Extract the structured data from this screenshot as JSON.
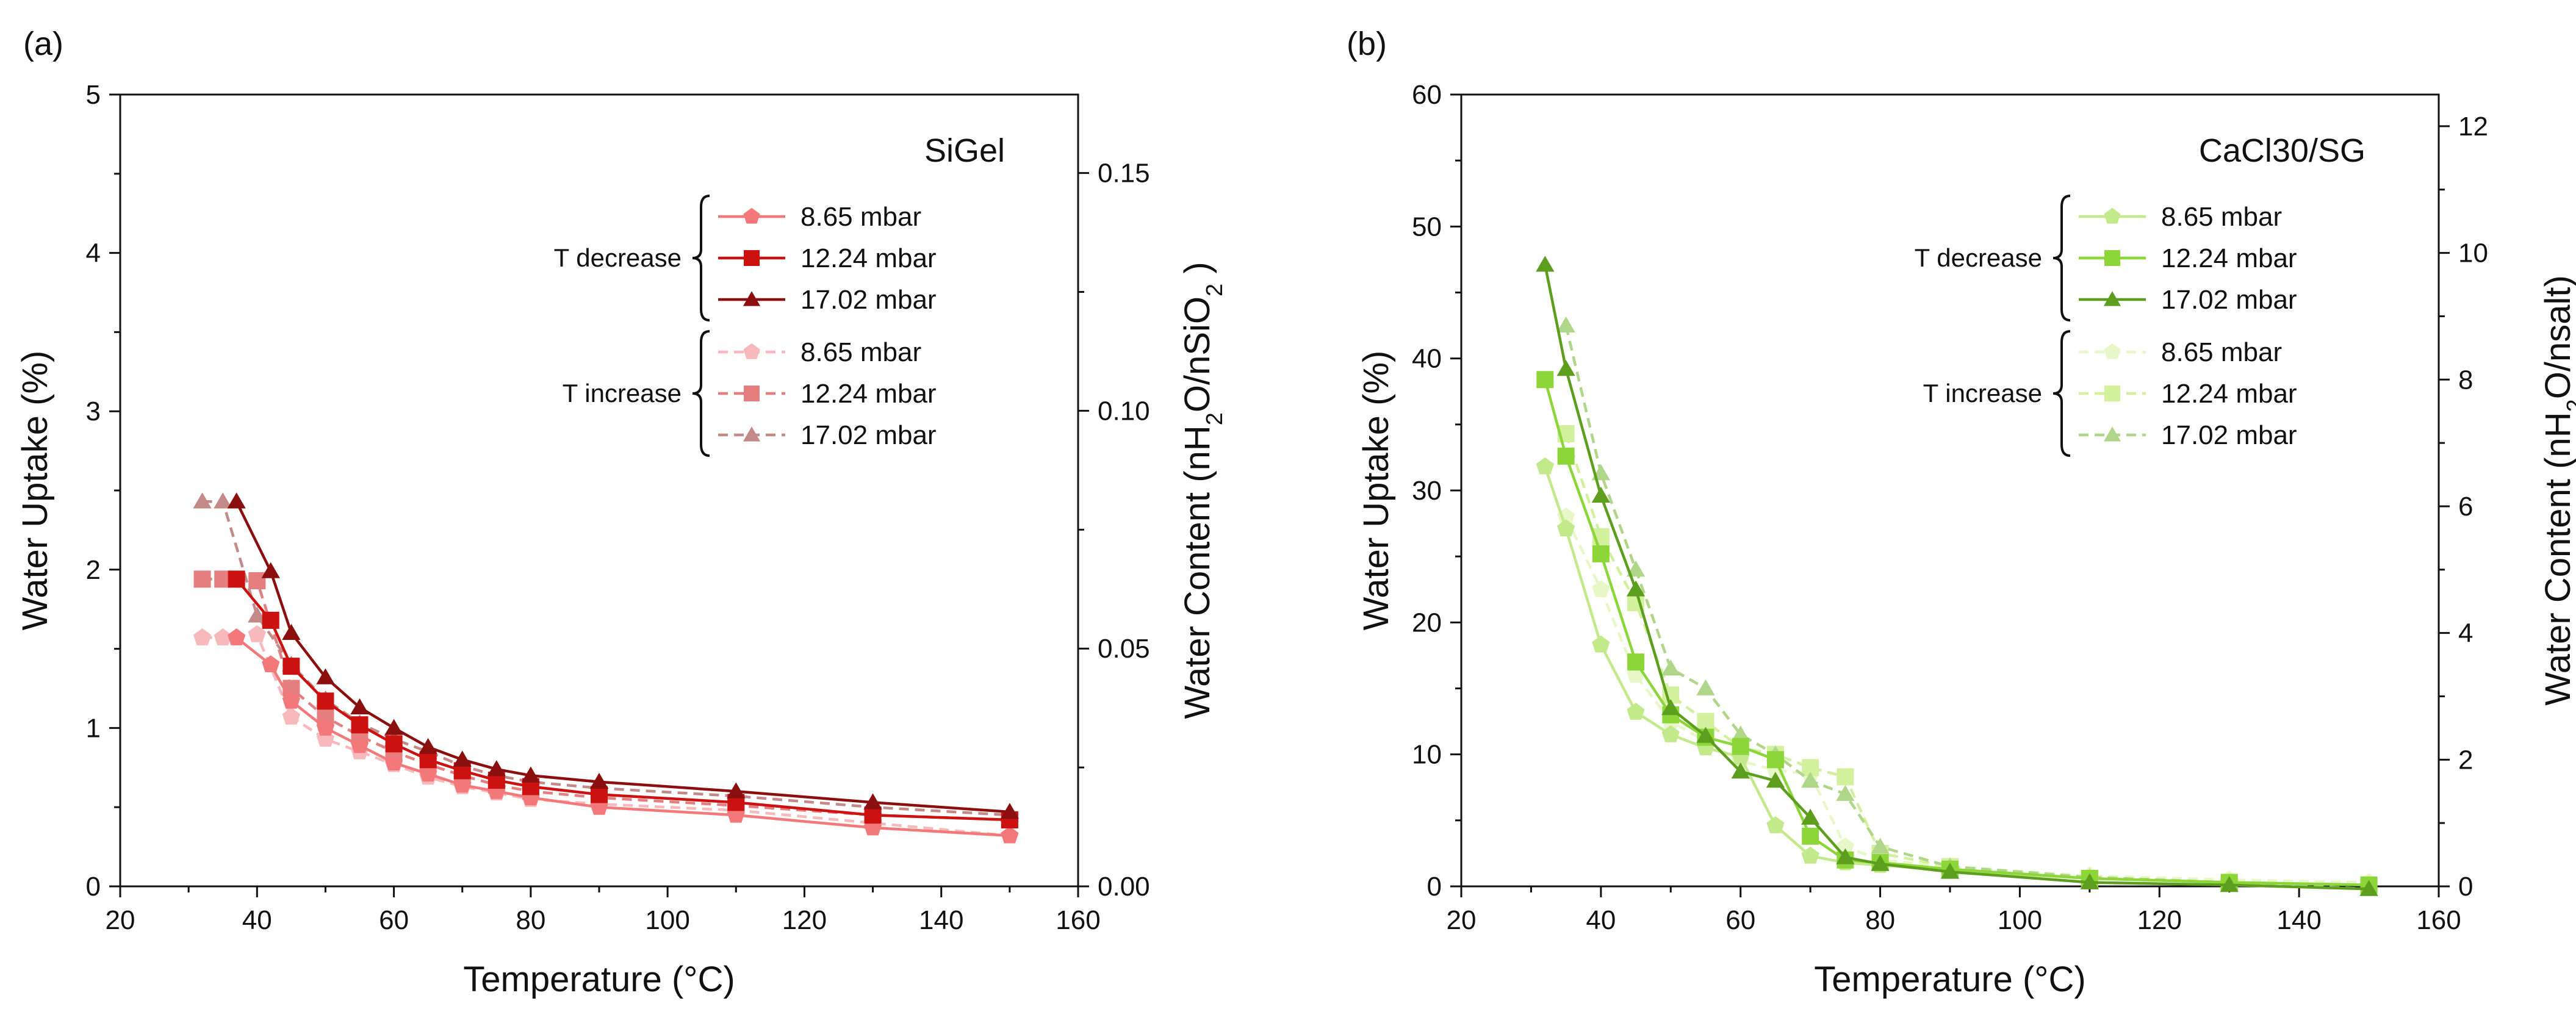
{
  "chart_data": [
    {
      "type": "line",
      "panel_label": "(a)",
      "title": "SiGel",
      "xlabel": "Temperature (°C)",
      "ylabel": "Water Uptake (%)",
      "ylabel_right": "Water Content  (nH2O/nSiO2 )",
      "xlim": [
        20,
        160
      ],
      "ylim": [
        0,
        5
      ],
      "ylim_right": [
        0,
        0.1665
      ],
      "xticks": [
        20,
        40,
        60,
        80,
        100,
        120,
        140,
        160
      ],
      "yticks": [
        0,
        1,
        2,
        3,
        4,
        5
      ],
      "yticks_right": [
        "0.00",
        "0.05",
        "0.10",
        "0.15"
      ],
      "group_labels": {
        "decrease": "T decrease",
        "increase": "T increase"
      },
      "series": [
        {
          "name": "8.65 mbar",
          "group": "decrease",
          "marker": "pentagon",
          "color": "#f2787a",
          "dashed": false,
          "x": [
            37,
            42,
            45,
            50,
            55,
            60,
            65,
            70,
            75,
            80,
            90,
            110,
            130,
            150
          ],
          "y": [
            1.57,
            1.4,
            1.17,
            1.0,
            0.89,
            0.78,
            0.71,
            0.64,
            0.6,
            0.56,
            0.5,
            0.45,
            0.37,
            0.32
          ]
        },
        {
          "name": "12.24 mbar",
          "group": "decrease",
          "marker": "square",
          "color": "#cc1111",
          "dashed": false,
          "x": [
            37,
            42,
            45,
            50,
            55,
            60,
            65,
            70,
            75,
            80,
            90,
            110,
            130,
            150
          ],
          "y": [
            1.94,
            1.68,
            1.39,
            1.17,
            1.02,
            0.9,
            0.8,
            0.73,
            0.67,
            0.63,
            0.58,
            0.53,
            0.45,
            0.42
          ]
        },
        {
          "name": "17.02 mbar",
          "group": "decrease",
          "marker": "triangle",
          "color": "#8b0f0f",
          "dashed": false,
          "x": [
            37,
            42,
            45,
            50,
            55,
            60,
            65,
            70,
            75,
            80,
            90,
            110,
            130,
            150
          ],
          "y": [
            2.43,
            1.99,
            1.6,
            1.32,
            1.13,
            1.0,
            0.88,
            0.8,
            0.74,
            0.7,
            0.66,
            0.6,
            0.53,
            0.47
          ]
        },
        {
          "name": "8.65 mbar",
          "group": "increase",
          "marker": "pentagon",
          "color": "#f7b9bb",
          "dashed": true,
          "x": [
            32,
            35,
            40,
            45,
            50,
            55,
            60,
            65,
            70,
            75,
            80,
            90,
            110,
            130,
            150
          ],
          "y": [
            1.57,
            1.57,
            1.59,
            1.07,
            0.93,
            0.85,
            0.77,
            0.69,
            0.63,
            0.59,
            0.55,
            0.52,
            0.48,
            0.4,
            0.32
          ]
        },
        {
          "name": "12.24 mbar",
          "group": "increase",
          "marker": "square",
          "color": "#e57e7e",
          "dashed": true,
          "x": [
            32,
            35,
            40,
            45,
            50,
            55,
            60,
            65,
            70,
            75,
            80,
            90,
            110,
            130,
            150
          ],
          "y": [
            1.94,
            1.94,
            1.93,
            1.25,
            1.07,
            0.95,
            0.85,
            0.77,
            0.7,
            0.64,
            0.6,
            0.56,
            0.51,
            0.45,
            0.42
          ]
        },
        {
          "name": "17.02 mbar",
          "group": "increase",
          "marker": "triangle",
          "color": "#c48a8a",
          "dashed": true,
          "x": [
            32,
            35,
            40,
            45,
            50,
            55,
            60,
            65,
            70,
            75,
            80,
            90,
            110,
            130,
            150
          ],
          "y": [
            2.43,
            2.43,
            1.71,
            1.4,
            1.18,
            1.03,
            0.93,
            0.85,
            0.76,
            0.7,
            0.66,
            0.62,
            0.57,
            0.5,
            0.45
          ]
        }
      ]
    },
    {
      "type": "line",
      "panel_label": "(b)",
      "title": "CaCl30/SG",
      "xlabel": "Temperature (°C)",
      "ylabel": "Water Uptake (%)",
      "ylabel_right": "Water Content (nH2O/nsalt)",
      "xlim": [
        20,
        160
      ],
      "ylim": [
        0,
        60
      ],
      "ylim_right": [
        0,
        12.5
      ],
      "xticks": [
        20,
        40,
        60,
        80,
        100,
        120,
        140,
        160
      ],
      "yticks": [
        0,
        10,
        20,
        30,
        40,
        50,
        60
      ],
      "yticks_right": [
        "0",
        "2",
        "4",
        "6",
        "8",
        "10",
        "12"
      ],
      "group_labels": {
        "decrease": "T decrease",
        "increase": "T increase"
      },
      "series": [
        {
          "name": "8.65 mbar",
          "group": "decrease",
          "marker": "pentagon",
          "color": "#c3ea8a",
          "dashed": false,
          "x": [
            32,
            35,
            40,
            45,
            50,
            55,
            60,
            65,
            70,
            75,
            80,
            90,
            110,
            130,
            150
          ],
          "y": [
            31.8,
            27.1,
            18.3,
            13.2,
            11.5,
            10.5,
            9.8,
            4.6,
            2.3,
            1.8,
            1.6,
            1.2,
            0.6,
            0.3,
            0.1
          ]
        },
        {
          "name": "12.24 mbar",
          "group": "decrease",
          "marker": "square",
          "color": "#8cd63a",
          "dashed": false,
          "x": [
            32,
            35,
            40,
            45,
            50,
            55,
            60,
            65,
            70,
            75,
            80,
            90,
            110,
            130,
            150
          ],
          "y": [
            38.4,
            32.6,
            25.2,
            17.0,
            13.0,
            11.3,
            10.6,
            9.6,
            3.8,
            2.0,
            1.8,
            1.3,
            0.6,
            0.3,
            0.1
          ]
        },
        {
          "name": "17.02 mbar",
          "group": "decrease",
          "marker": "triangle",
          "color": "#5e9e1e",
          "dashed": false,
          "x": [
            32,
            35,
            40,
            45,
            50,
            55,
            60,
            65,
            70,
            75,
            80,
            90,
            110,
            130,
            150
          ],
          "y": [
            47.1,
            39.2,
            29.6,
            22.5,
            13.5,
            11.4,
            8.7,
            8.0,
            5.2,
            2.2,
            1.7,
            1.1,
            0.3,
            0.1,
            -0.2
          ]
        },
        {
          "name": "8.65 mbar",
          "group": "increase",
          "marker": "pentagon",
          "color": "#e8f7c8",
          "dashed": true,
          "x": [
            35,
            40,
            45,
            50,
            55,
            60,
            65,
            70,
            75,
            80,
            90,
            110,
            130,
            150
          ],
          "y": [
            28.0,
            22.5,
            16.0,
            12.5,
            11.0,
            9.5,
            8.8,
            8.5,
            3.0,
            2.0,
            1.5,
            0.8,
            0.5,
            0.3
          ]
        },
        {
          "name": "12.24 mbar",
          "group": "increase",
          "marker": "square",
          "color": "#d3f09c",
          "dashed": true,
          "x": [
            35,
            40,
            45,
            50,
            55,
            60,
            65,
            70,
            75,
            80,
            90,
            110,
            130,
            150
          ],
          "y": [
            34.3,
            26.5,
            21.5,
            14.5,
            12.5,
            10.5,
            10.0,
            9.0,
            8.3,
            2.5,
            1.5,
            0.6,
            0.3,
            0.1
          ]
        },
        {
          "name": "17.02 mbar",
          "group": "increase",
          "marker": "triangle",
          "color": "#b0d68a",
          "dashed": true,
          "x": [
            35,
            40,
            45,
            50,
            55,
            60,
            65,
            70,
            75,
            80,
            90,
            110,
            130,
            150
          ],
          "y": [
            42.5,
            31.3,
            24.0,
            16.5,
            15.0,
            11.5,
            10.0,
            8.0,
            7.0,
            3.0,
            1.5,
            0.7,
            0.3,
            -0.2
          ]
        }
      ]
    }
  ]
}
